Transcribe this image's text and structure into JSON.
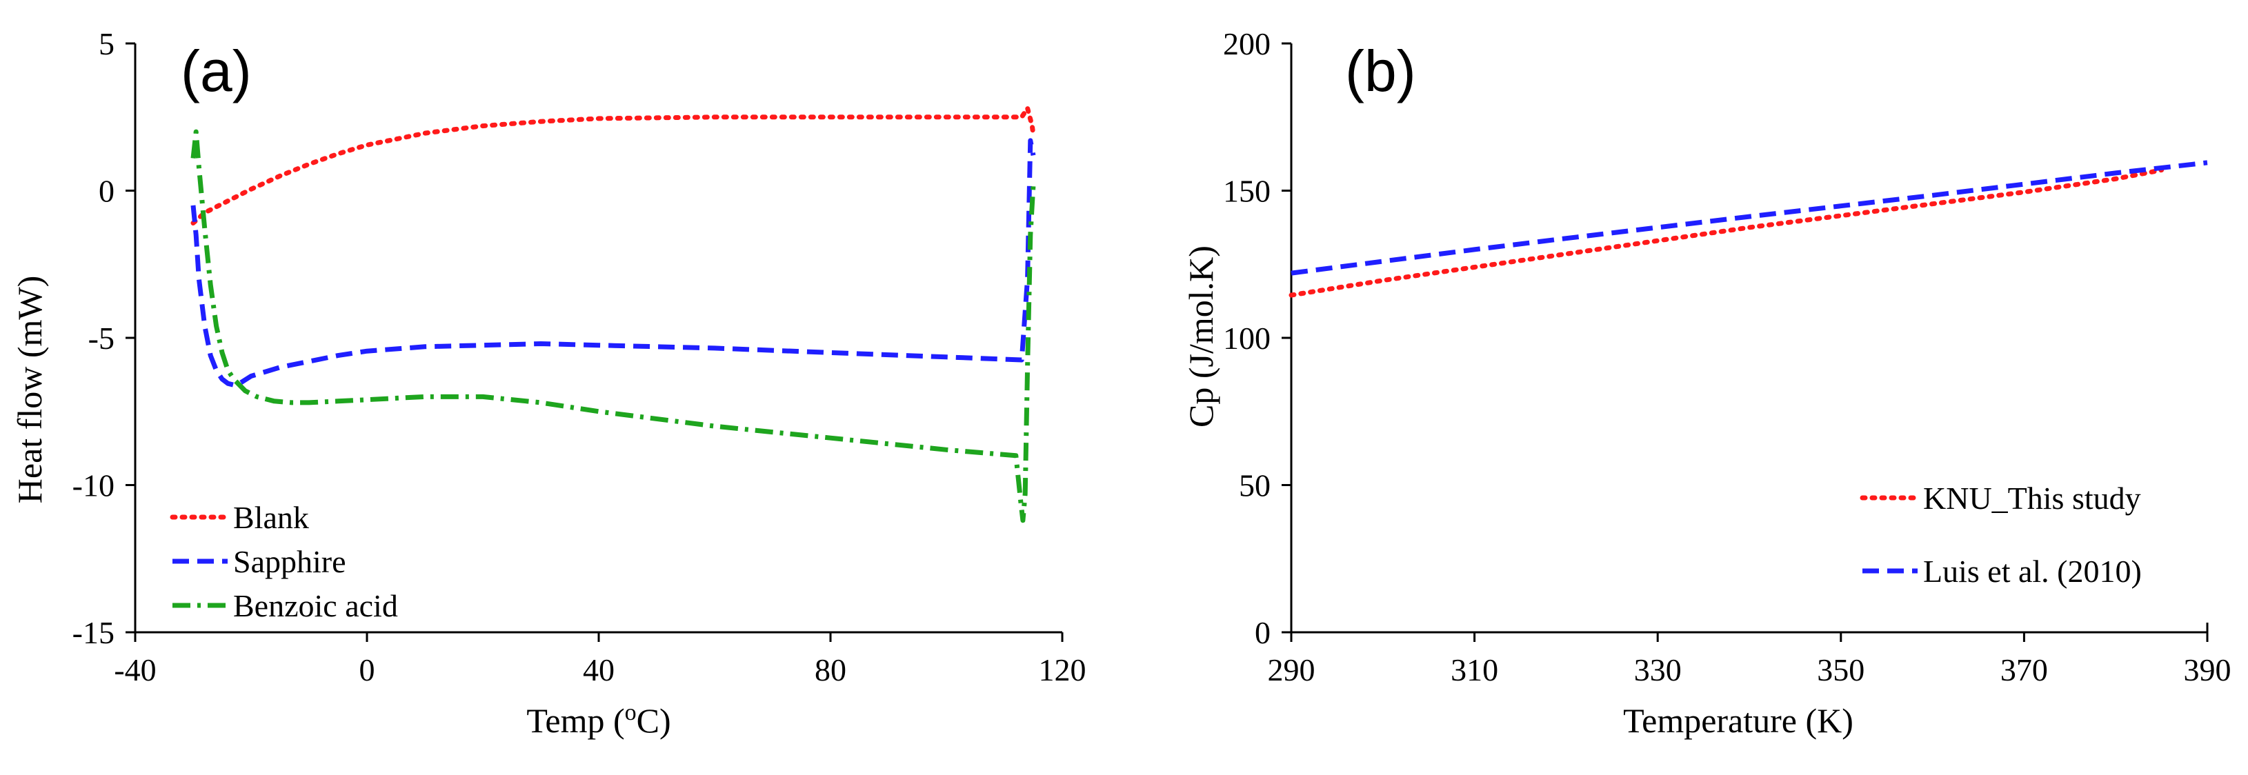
{
  "chart_data": [
    {
      "panel_label": "(a)",
      "type": "line",
      "xlabel": "Temp (",
      "xlabel_sup": "o",
      "xlabel_end": "C)",
      "ylabel": "Heat flow (mW)",
      "xlim": [
        -40,
        120
      ],
      "ylim": [
        -15,
        5
      ],
      "xticks": [
        -40,
        0,
        40,
        80,
        120
      ],
      "yticks": [
        -15,
        -10,
        -5,
        0,
        5
      ],
      "legend_position": "bottom-left",
      "series": [
        {
          "name": "Blank",
          "color": "#ff1a1a",
          "style": "dotted",
          "x": [
            -30,
            -28,
            -25,
            -20,
            -15,
            -10,
            -5,
            0,
            5,
            10,
            20,
            30,
            40,
            60,
            80,
            100,
            113,
            114,
            114.8,
            115
          ],
          "y": [
            -1.1,
            -0.75,
            -0.45,
            0.05,
            0.5,
            0.9,
            1.25,
            1.55,
            1.75,
            1.95,
            2.2,
            2.35,
            2.45,
            2.5,
            2.5,
            2.5,
            2.5,
            2.8,
            2.2,
            1.9
          ]
        },
        {
          "name": "Sapphire",
          "color": "#1f1fff",
          "style": "dashed",
          "x": [
            -30,
            -29.5,
            -29,
            -28,
            -27,
            -26,
            -25,
            -24,
            -23,
            -22,
            -20,
            -15,
            -10,
            -5,
            0,
            10,
            20,
            30,
            40,
            60,
            80,
            100,
            113,
            114,
            114.5,
            115
          ],
          "y": [
            -0.5,
            -1.5,
            -3.0,
            -4.6,
            -5.6,
            -6.1,
            -6.4,
            -6.55,
            -6.6,
            -6.55,
            -6.3,
            -6.0,
            -5.8,
            -5.6,
            -5.45,
            -5.3,
            -5.25,
            -5.2,
            -5.25,
            -5.35,
            -5.5,
            -5.65,
            -5.75,
            -3.0,
            1.7,
            1.2
          ]
        },
        {
          "name": "Benzoic acid",
          "color": "#1ea51e",
          "style": "dashdot",
          "x": [
            -30,
            -29.5,
            -29,
            -28,
            -27,
            -26,
            -25,
            -24,
            -23,
            -21,
            -19,
            -16,
            -13,
            -10,
            -5,
            0,
            5,
            10,
            20,
            30,
            40,
            60,
            80,
            100,
            112,
            112.8,
            113.2,
            113.6,
            114,
            114.5,
            115
          ],
          "y": [
            1.1,
            2.0,
            0.8,
            -1.3,
            -3.2,
            -4.6,
            -5.5,
            -6.1,
            -6.4,
            -6.8,
            -7.0,
            -7.15,
            -7.2,
            -7.2,
            -7.15,
            -7.1,
            -7.05,
            -7.0,
            -7.0,
            -7.2,
            -7.5,
            -8.0,
            -8.4,
            -8.8,
            -9.0,
            -10.5,
            -11.2,
            -10.3,
            -6.0,
            -1.5,
            0.2
          ]
        }
      ]
    },
    {
      "panel_label": "(b)",
      "type": "line",
      "xlabel": "Temperature (K)",
      "ylabel": "Cp (J/mol.K)",
      "xlim": [
        290,
        390
      ],
      "ylim": [
        0,
        200
      ],
      "xticks": [
        290,
        310,
        330,
        350,
        370,
        390
      ],
      "yticks": [
        0,
        50,
        100,
        150,
        200
      ],
      "legend_position": "bottom-right",
      "series": [
        {
          "name": "KNU_This study",
          "color": "#ff1a1a",
          "style": "dotted",
          "x": [
            290,
            300,
            310,
            320,
            330,
            340,
            350,
            360,
            370,
            380,
            385
          ],
          "y": [
            114.5,
            119.5,
            124.0,
            128.5,
            133.0,
            137.5,
            141.5,
            145.5,
            149.5,
            154.0,
            157.0
          ]
        },
        {
          "name": "Luis et al. (2010)",
          "color": "#1f1fff",
          "style": "dashed",
          "x": [
            290,
            300,
            310,
            320,
            330,
            340,
            350,
            360,
            370,
            380,
            390
          ],
          "y": [
            122.0,
            126.0,
            130.0,
            133.8,
            137.5,
            141.2,
            144.8,
            148.4,
            152.2,
            156.0,
            159.5
          ]
        }
      ]
    }
  ]
}
